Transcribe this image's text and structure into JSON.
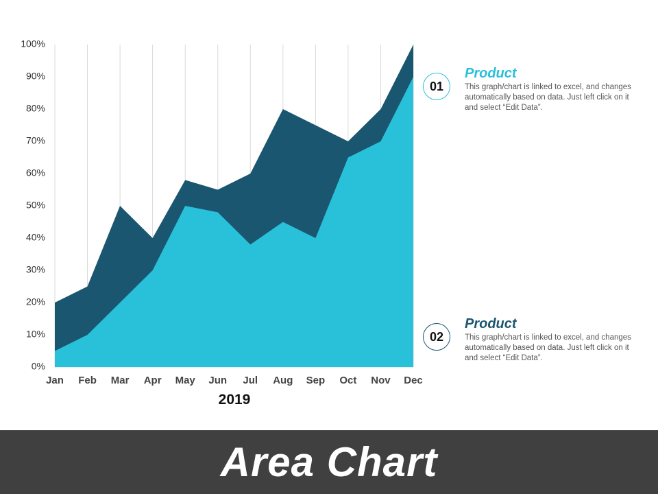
{
  "chart_data": {
    "type": "area",
    "categories": [
      "Jan",
      "Feb",
      "Mar",
      "Apr",
      "May",
      "Jun",
      "Jul",
      "Aug",
      "Sep",
      "Oct",
      "Nov",
      "Dec"
    ],
    "series": [
      {
        "name": "Product",
        "values": [
          20,
          25,
          50,
          40,
          58,
          55,
          60,
          80,
          75,
          70,
          80,
          100
        ],
        "color": "#1a5670"
      },
      {
        "name": "Product",
        "values": [
          5,
          10,
          20,
          30,
          50,
          48,
          38,
          45,
          40,
          65,
          70,
          90
        ],
        "color": "#29c0da"
      }
    ],
    "xlabel": "2019",
    "ylabel": "",
    "ylim": [
      0,
      100
    ],
    "yticks": [
      "0%",
      "10%",
      "20%",
      "30%",
      "40%",
      "50%",
      "60%",
      "70%",
      "80%",
      "90%",
      "100%"
    ],
    "grid": "vertical",
    "legend_position": "right"
  },
  "legend": [
    {
      "number": "01",
      "title": "Product",
      "description": "This graph/chart is linked to excel, and changes automatically based on data. Just left click on it and select “Edit Data”.",
      "color": "#29c0da"
    },
    {
      "number": "02",
      "title": "Product",
      "description": "This graph/chart is linked to excel, and changes automatically based on data. Just left click on it and select “Edit Data”.",
      "color": "#1a5670"
    }
  ],
  "footer": {
    "title": "Area Chart"
  }
}
